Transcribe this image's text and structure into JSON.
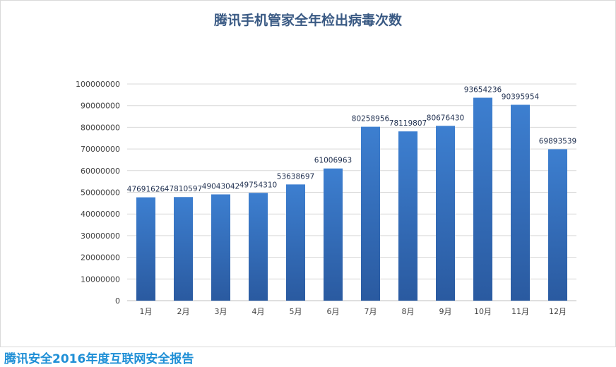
{
  "chart_data": {
    "type": "bar",
    "title": "腾讯手机管家全年检出病毒次数",
    "categories": [
      "1月",
      "2月",
      "3月",
      "4月",
      "5月",
      "6月",
      "7月",
      "8月",
      "9月",
      "10月",
      "11月",
      "12月"
    ],
    "values": [
      47691626,
      47810597,
      49043042,
      49754310,
      53638697,
      61006963,
      80258956,
      78119807,
      80676430,
      93654236,
      90395954,
      69893539
    ],
    "xlabel": "",
    "ylabel": "",
    "ylim": [
      0,
      100000000
    ],
    "yticks": [
      0,
      10000000,
      20000000,
      30000000,
      40000000,
      50000000,
      60000000,
      70000000,
      80000000,
      90000000,
      100000000
    ],
    "grid": true,
    "legend": "none",
    "bar_color_top": "#3d7fd0",
    "bar_color_bottom": "#2a5aa0",
    "label_color": "#1f2f4f"
  },
  "footer": {
    "text": "腾讯安全2016年度互联网安全报告",
    "color": "#1f8fd6"
  }
}
